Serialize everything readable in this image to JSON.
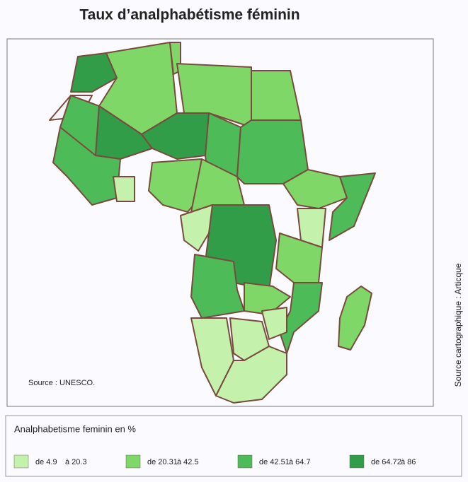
{
  "title": "Taux d’analphabétisme féminin",
  "source": "Source : UNESCO.",
  "credit": "Source cartographique : Articque",
  "legend": {
    "title": "Analphabetisme feminin en %",
    "items": [
      {
        "from": "de 4.9",
        "to": "à 20.3",
        "color": "#c4f2ad"
      },
      {
        "from": "de 20.31",
        "to": "à 42.5",
        "color": "#7fd767"
      },
      {
        "from": "de 42.51",
        "to": "à 64.7",
        "color": "#4dbb57"
      },
      {
        "from": "de 64.72",
        "to": "à 86",
        "color": "#329d48"
      }
    ]
  }
}
